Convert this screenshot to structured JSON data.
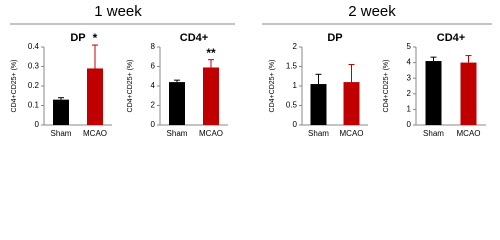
{
  "headings": [
    "1 week",
    "2 week"
  ],
  "chart_data": [
    {
      "type": "bar",
      "title": "DP",
      "ylabel": "CD4+CD25+ (%)",
      "categories": [
        "Sham",
        "MCAO"
      ],
      "values": [
        0.13,
        0.29
      ],
      "errors": [
        0.01,
        0.12
      ],
      "colors": [
        "#000000",
        "#c00000"
      ],
      "ylim": [
        0,
        0.4
      ],
      "yticks": [
        0,
        0.1,
        0.2,
        0.3,
        0.4
      ],
      "annotation": {
        "category": "MCAO",
        "text": "*"
      }
    },
    {
      "type": "bar",
      "title": "CD4+",
      "ylabel": "CD4+CD25+ (%)",
      "categories": [
        "Sham",
        "MCAO"
      ],
      "values": [
        4.4,
        5.9
      ],
      "errors": [
        0.2,
        0.8
      ],
      "colors": [
        "#000000",
        "#c00000"
      ],
      "ylim": [
        0,
        8
      ],
      "yticks": [
        0,
        2,
        4,
        6,
        8
      ],
      "annotation": {
        "category": "MCAO",
        "text": "**"
      }
    },
    {
      "type": "bar",
      "title": "DP",
      "ylabel": "CD4+CD25+ (%)",
      "categories": [
        "Sham",
        "MCAO"
      ],
      "values": [
        1.05,
        1.1
      ],
      "errors": [
        0.25,
        0.45
      ],
      "colors": [
        "#000000",
        "#c00000"
      ],
      "ylim": [
        0,
        2
      ],
      "yticks": [
        0,
        0.5,
        1,
        1.5,
        2
      ]
    },
    {
      "type": "bar",
      "title": "CD4+",
      "ylabel": "CD4+CD25+ (%)",
      "categories": [
        "Sham",
        "MCAO"
      ],
      "values": [
        4.1,
        4.0
      ],
      "errors": [
        0.25,
        0.45
      ],
      "colors": [
        "#000000",
        "#c00000"
      ],
      "ylim": [
        0,
        5
      ],
      "yticks": [
        0,
        1,
        2,
        3,
        4,
        5
      ]
    }
  ]
}
